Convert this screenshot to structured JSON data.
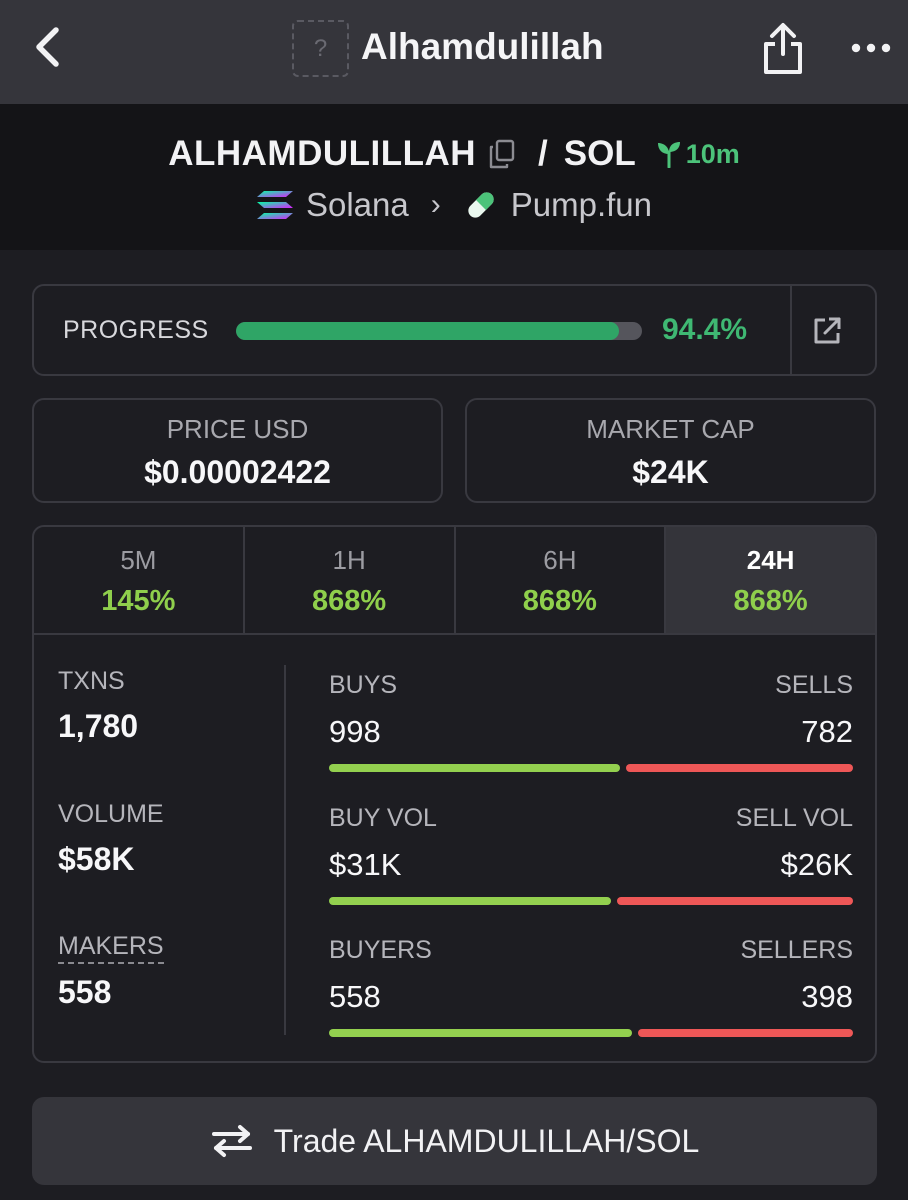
{
  "navbar": {
    "title": "Alhamdulillah",
    "logo_placeholder": "?"
  },
  "pair": {
    "base_symbol": "ALHAMDULILLAH",
    "separator": "/",
    "quote_symbol": "SOL",
    "age": "10m",
    "chain": "Solana",
    "dex": "Pump.fun"
  },
  "progress": {
    "label": "PROGRESS",
    "value_text": "94.4%",
    "fraction": 0.944
  },
  "stats": {
    "price": {
      "label": "PRICE USD",
      "value": "$0.00002422"
    },
    "market_cap": {
      "label": "MARKET CAP",
      "value": "$24K"
    }
  },
  "timeframes": [
    {
      "label": "5M",
      "change": "145%",
      "active": false
    },
    {
      "label": "1H",
      "change": "868%",
      "active": false
    },
    {
      "label": "6H",
      "change": "868%",
      "active": false
    },
    {
      "label": "24H",
      "change": "868%",
      "active": true
    }
  ],
  "metrics": {
    "txns": {
      "label": "TXNS",
      "value": "1,780"
    },
    "volume": {
      "label": "VOLUME",
      "value": "$58K"
    },
    "makers": {
      "label": "MAKERS",
      "value": "558"
    }
  },
  "splits": {
    "txns": {
      "left_label": "BUYS",
      "right_label": "SELLS",
      "left_value": "998",
      "right_value": "782",
      "left_share": 0.561
    },
    "volume": {
      "left_label": "BUY VOL",
      "right_label": "SELL VOL",
      "left_value": "$31K",
      "right_value": "$26K",
      "left_share": 0.545
    },
    "makers": {
      "left_label": "BUYERS",
      "right_label": "SELLERS",
      "left_value": "558",
      "right_value": "398",
      "left_share": 0.584
    }
  },
  "trade_button": {
    "label": "Trade ALHAMDULILLAH/SOL"
  },
  "colors": {
    "positive": "#8fcf4c",
    "buy_bar": "#93d04f",
    "sell_bar": "#ee5757",
    "progress": "#2fa566",
    "age_green": "#4cc37a"
  },
  "icons": {
    "back": "chevron-left-icon",
    "share": "share-icon",
    "more": "more-horizontal-icon",
    "copy": "copy-icon",
    "age": "seedling-icon",
    "chain": "solana-icon",
    "dex": "pill-icon",
    "external": "external-link-icon",
    "trade": "swap-arrows-icon"
  }
}
